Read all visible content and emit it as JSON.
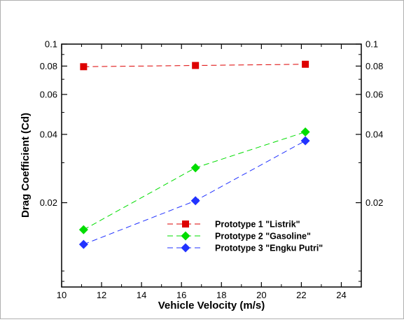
{
  "chart_data": {
    "type": "line",
    "title": "",
    "xlabel": "Vehicle Velocity (m/s)",
    "ylabel": "Drag Coefficient (Cd)",
    "xlim": [
      10,
      25
    ],
    "ylim": [
      0.0085,
      0.1
    ],
    "yscale": "log",
    "x_ticks": [
      10,
      12,
      14,
      16,
      18,
      20,
      22,
      24
    ],
    "y_ticks": [
      0.02,
      0.04,
      0.06,
      0.08,
      0.1
    ],
    "y_tick_labels": [
      "0.02",
      "0.04",
      "0.06",
      "0.08",
      "0.1"
    ],
    "right_axis_ticks": true,
    "grid": false,
    "legend_position": "lower-center",
    "series": [
      {
        "name": "Prototype 1 \"Listrik\"",
        "color": "#dd0000",
        "marker": "square",
        "line": "dashed",
        "x": [
          11.1,
          16.7,
          22.2
        ],
        "y": [
          0.0795,
          0.0805,
          0.0815
        ]
      },
      {
        "name": "Prototype 2 \"Gasoline\"",
        "color": "#00dd00",
        "marker": "diamond",
        "line": "dashed",
        "x": [
          11.1,
          16.7,
          22.2
        ],
        "y": [
          0.0152,
          0.0285,
          0.041
        ]
      },
      {
        "name": "Prototype 3 \"Engku Putri\"",
        "color": "#2233ff",
        "marker": "diamond",
        "line": "dashed",
        "x": [
          11.1,
          16.7,
          22.2
        ],
        "y": [
          0.0131,
          0.0204,
          0.0375
        ]
      }
    ]
  }
}
